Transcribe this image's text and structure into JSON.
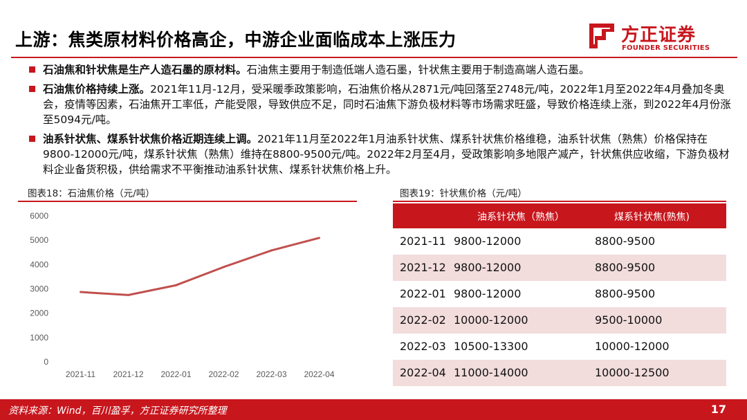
{
  "header": {
    "title": "上游：焦类原材料价格高企，中游企业面临成本上涨压力",
    "logo_cn": "方正证券",
    "logo_en": "FOUNDER SECURITIES"
  },
  "bullets": [
    {
      "bold": "石油焦和针状焦是生产人造石墨的原材料。",
      "text": "石油焦主要用于制造低端人造石墨，针状焦主要用于制造高端人造石墨。"
    },
    {
      "bold": "石油焦价格持续上涨。",
      "text": "2021年11月-12月，受采暖季政策影响，石油焦价格从2871元/吨回落至2748元/吨，2022年1月至2022年4月叠加冬奥会，疫情等因素，石油焦开工率低，产能受限，导致供应不足，同时石油焦下游负极材料等市场需求旺盛，导致价格连续上涨，到2022年4月份涨至5094元/吨。"
    },
    {
      "bold": "油系针状焦、煤系针状焦价格近期连续上调。",
      "text": "2021年11月至2022年1月油系针状焦、煤系针状焦价格维稳，油系针状焦（熟焦）价格保持在9800-12000元/吨，煤系针状焦（熟焦）维持在8800-9500元/吨。2022年2月至4月，受政策影响多地限产减产，针状焦供应收缩，下游负极材料企业备货积极，供给需求不平衡推动油系针状焦、煤系针状焦价格上升。"
    }
  ],
  "chart_caption": "图表18：石油焦价格（元/吨）",
  "chart_data": {
    "type": "line",
    "categories": [
      "2021-11",
      "2021-12",
      "2022-01",
      "2022-02",
      "2022-03",
      "2022-04"
    ],
    "series": [
      {
        "values": [
          2871,
          2748,
          3150,
          3900,
          4580,
          5094
        ]
      }
    ],
    "ylim": [
      0,
      6000
    ],
    "yticks": [
      0,
      1000,
      2000,
      3000,
      4000,
      5000,
      6000
    ],
    "grid": false,
    "line_color": "#c0504d"
  },
  "table_caption": "图表19：针状焦价格（元/吨）",
  "table": {
    "headers": [
      "",
      "油系针状焦（熟焦）",
      "煤系针状焦(熟焦)"
    ],
    "rows": [
      [
        "2021-11",
        "9800-12000",
        "8800-9500"
      ],
      [
        "2021-12",
        "9800-12000",
        "8800-9500"
      ],
      [
        "2022-01",
        "9800-12000",
        "8800-9500"
      ],
      [
        "2022-02",
        "10000-12000",
        "9500-10000"
      ],
      [
        "2022-03",
        "10500-13300",
        "10000-12000"
      ],
      [
        "2022-04",
        "11000-14000",
        "10000-12500"
      ]
    ]
  },
  "footer": {
    "source": "资料来源：Wind，百川盈孚，方正证券研究所整理",
    "page": "17"
  },
  "colors": {
    "accent": "#c8161d",
    "row_alt": "#f2dcdc"
  }
}
